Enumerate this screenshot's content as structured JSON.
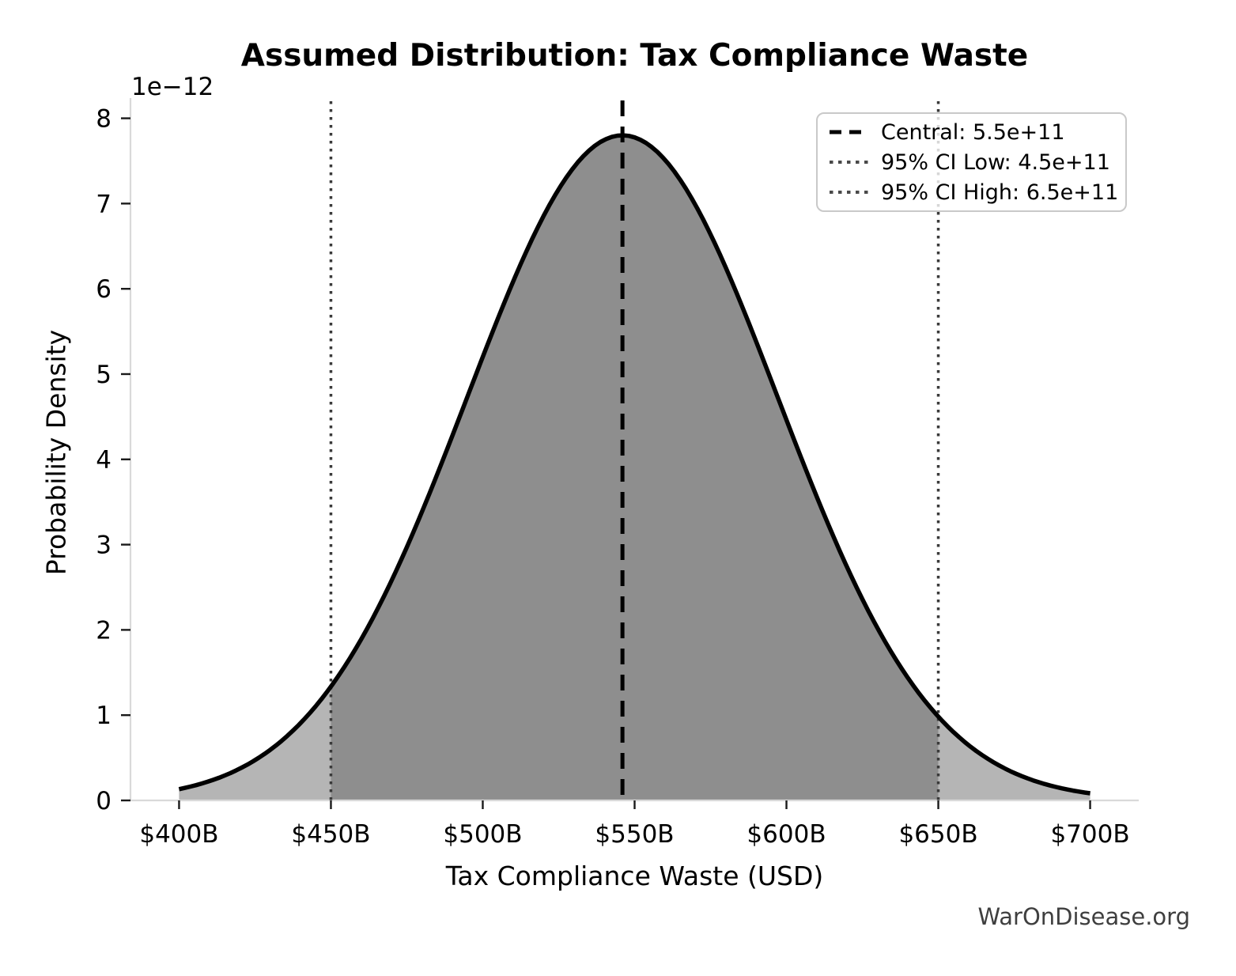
{
  "title": "Assumed Distribution: Tax Compliance Waste",
  "watermark": "WarOnDisease.org",
  "x_axis": {
    "label": "Tax Compliance Waste (USD)",
    "tick_labels": [
      "$400B",
      "$450B",
      "$500B",
      "$550B",
      "$600B",
      "$650B",
      "$700B"
    ]
  },
  "y_axis": {
    "label": "Probability Density",
    "offset_label": "1e−12",
    "tick_labels": [
      "0",
      "1",
      "2",
      "3",
      "4",
      "5",
      "6",
      "7",
      "8"
    ]
  },
  "legend": {
    "position": "upper right",
    "items": [
      {
        "label": "Central: 5.5e+11",
        "style": "dashed",
        "color": "#000000"
      },
      {
        "label": "95% CI Low: 4.5e+11",
        "style": "dotted",
        "color": "#3a3a3a"
      },
      {
        "label": "95% CI High: 6.5e+11",
        "style": "dotted",
        "color": "#3a3a3a"
      }
    ]
  },
  "chart_data": {
    "type": "area",
    "title": "Assumed Distribution: Tax Compliance Waste",
    "xlabel": "Tax Compliance Waste (USD)",
    "ylabel": "Probability Density",
    "y_scale_factor_label": "1e−12",
    "grid": false,
    "legend_position": "upper right",
    "xlim": [
      384000000000,
      716000000000
    ],
    "ylim": [
      0,
      8.2e-12
    ],
    "x_tick_values": [
      400000000000,
      450000000000,
      500000000000,
      550000000000,
      600000000000,
      650000000000,
      700000000000
    ],
    "x_tick_labels": [
      "$400B",
      "$450B",
      "$500B",
      "$550B",
      "$600B",
      "$650B",
      "$700B"
    ],
    "y_tick_values": [
      0,
      1e-12,
      2e-12,
      3e-12,
      4e-12,
      5e-12,
      6e-12,
      7e-12,
      8e-12
    ],
    "y_tick_labels": [
      "0",
      "1",
      "2",
      "3",
      "4",
      "5",
      "6",
      "7",
      "8"
    ],
    "curve": {
      "distribution": "normal",
      "peak_x": 546000000000,
      "sigma": 51100000000,
      "peak_density": 7.8e-12,
      "x_start": 400000000000,
      "x_end": 700000000000
    },
    "central": {
      "value": 550000000000.0,
      "label": "Central: 5.5e+11",
      "line_style": "dashed"
    },
    "ci_low": {
      "value": 450000000000.0,
      "label": "95% CI Low: 4.5e+11",
      "line_style": "dotted"
    },
    "ci_high": {
      "value": 650000000000.0,
      "label": "95% CI High: 6.5e+11",
      "line_style": "dotted"
    },
    "colors": {
      "curve": "#000000",
      "fill_central_band": "#8e8e8e",
      "fill_tails": "#b5b5b5",
      "central_line": "#000000",
      "ci_lines": "#3a3a3a",
      "spines": "#d9d9d9",
      "ticks": "#1a1a1a",
      "background": "#ffffff"
    }
  }
}
